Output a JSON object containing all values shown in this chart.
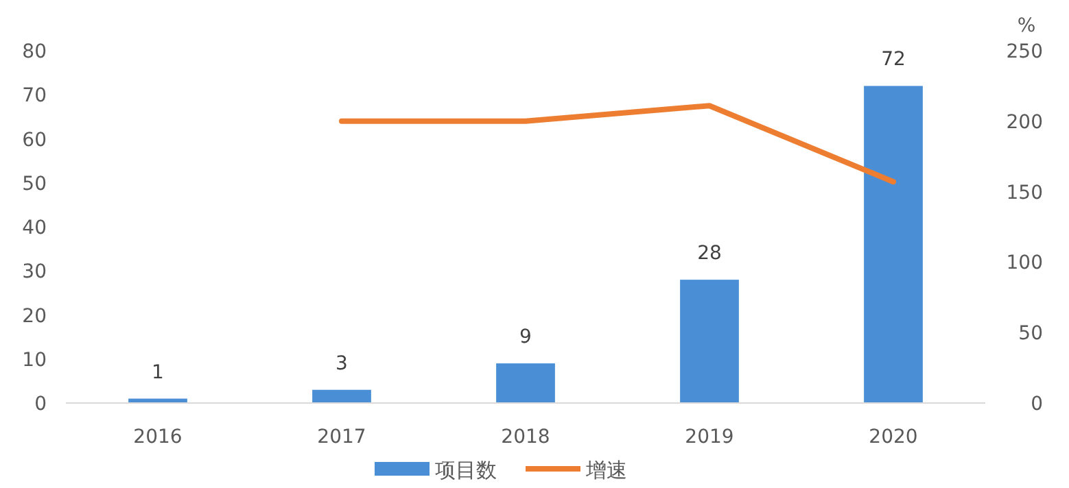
{
  "chart_data": {
    "type": "bar",
    "categories": [
      "2016",
      "2017",
      "2018",
      "2019",
      "2020"
    ],
    "y2label": "%",
    "series": [
      {
        "name": "项目数",
        "color": "#4a8fd6",
        "values": [
          1,
          3,
          9,
          28,
          72
        ],
        "value_labels": [
          "1",
          "3",
          "9",
          "28",
          "72"
        ]
      },
      {
        "name": "增速",
        "type": "line",
        "axis": "y2",
        "color": "#ed7d31",
        "values": [
          null,
          200,
          200,
          211,
          157
        ]
      }
    ],
    "ylim": [
      0,
      80
    ],
    "yticks": [
      0,
      10,
      20,
      30,
      40,
      50,
      60,
      70,
      80
    ],
    "y2lim": [
      0,
      250
    ],
    "y2ticks": [
      0,
      50,
      100,
      150,
      200,
      250
    ],
    "grid": false,
    "legend": "bottom",
    "marker": "none",
    "line_style": "solid"
  }
}
